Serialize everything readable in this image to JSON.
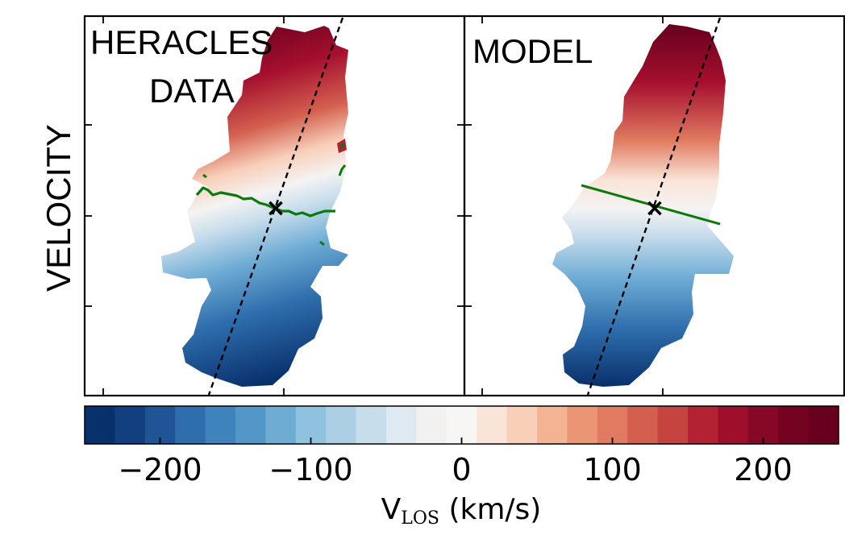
{
  "figure": {
    "row_label": "VELOCITY"
  },
  "chart_data": [
    {
      "type": "heatmap",
      "title": "HERACLES DATA",
      "title_lines": [
        "HERACLES",
        "DATA"
      ],
      "quantity": "line-of-sight velocity field",
      "kinematic_major_axis": "dashed black line",
      "zero_velocity_contour": "green curve",
      "galaxy_center_marker": "×",
      "velocity_range_kms": [
        -240,
        240
      ]
    },
    {
      "type": "heatmap",
      "title": "MODEL",
      "quantity": "model line-of-sight velocity field",
      "kinematic_major_axis": "dashed black line",
      "zero_velocity_contour": "green straight line",
      "galaxy_center_marker": "×",
      "velocity_range_kms": [
        -240,
        240
      ]
    }
  ],
  "colorbar": {
    "label_main": "V",
    "label_sub": "LOS",
    "label_unit": " (km/s)",
    "vmin": -250,
    "vmax": 250,
    "n_levels": 25,
    "tick_values": [
      -200,
      -100,
      0,
      100,
      200
    ],
    "tick_labels": [
      "−200",
      "−100",
      "0",
      "100",
      "200"
    ],
    "colors": [
      "#08306b",
      "#123f7f",
      "#1f5497",
      "#2f6ead",
      "#3f83bd",
      "#5396c8",
      "#6eacd4",
      "#8fc2df",
      "#adcfe6",
      "#c8ddec",
      "#dee9f1",
      "#f1f1f1",
      "#f7f6f5",
      "#fae4d8",
      "#f8cfb9",
      "#f4b393",
      "#ec9575",
      "#e07a60",
      "#d3604f",
      "#c5443f",
      "#b32233",
      "#9f0f2c",
      "#870726",
      "#740322",
      "#67001f"
    ]
  }
}
